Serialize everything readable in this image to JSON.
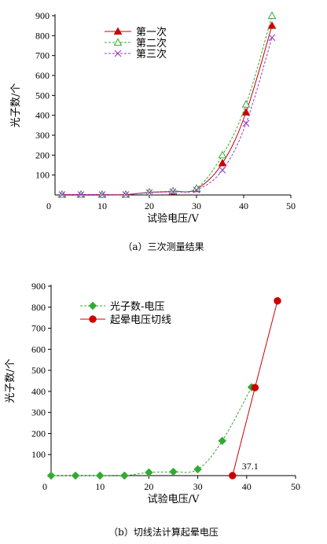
{
  "chart_data": [
    {
      "type": "line",
      "caption": "（a）三次测量结果",
      "xlabel": "试验电压/V",
      "ylabel": "光子数/个",
      "xlim": [
        0,
        50
      ],
      "ylim": [
        0,
        900
      ],
      "xticks": [
        10,
        20,
        30,
        40,
        50
      ],
      "yticks": [
        100,
        200,
        300,
        400,
        500,
        600,
        700,
        800,
        900
      ],
      "origin_label": "0",
      "grid": false,
      "legend": "top-left",
      "x": [
        1.5,
        5.5,
        10,
        15,
        20,
        25,
        30,
        35.5,
        40.5,
        46
      ],
      "series": [
        {
          "name": "第一次",
          "color": "#cc0000",
          "marker": "filled-triangle",
          "line": "solid",
          "values": [
            2,
            2,
            2,
            2,
            13,
            18,
            30,
            160,
            415,
            850
          ]
        },
        {
          "name": "第二次",
          "color": "#33aa33",
          "marker": "open-triangle",
          "line": "dashed",
          "values": [
            2,
            2,
            2,
            2,
            14,
            20,
            33,
            200,
            455,
            900
          ]
        },
        {
          "name": "第三次",
          "color": "#9933cc",
          "marker": "cross",
          "line": "dashed",
          "values": [
            2,
            2,
            2,
            2,
            12,
            16,
            25,
            125,
            360,
            790
          ]
        }
      ]
    },
    {
      "type": "line",
      "caption": "（b）切线法计算起晕电压",
      "xlabel": "试验电压/V",
      "ylabel": "光子数/个",
      "xlim": [
        0,
        50
      ],
      "ylim": [
        0,
        900
      ],
      "xticks": [
        10,
        20,
        30,
        40,
        50
      ],
      "yticks": [
        100,
        200,
        300,
        400,
        500,
        600,
        700,
        800,
        900
      ],
      "origin_label": "0",
      "grid": false,
      "legend": "top-left",
      "annotation": {
        "text": "37.1",
        "x": 37.1,
        "y": 0
      },
      "series": [
        {
          "name": "光子数-电压",
          "color": "#33aa33",
          "marker": "diamond",
          "line": "dashed",
          "x": [
            0,
            5,
            10,
            15,
            20,
            25,
            30,
            35,
            41
          ],
          "values": [
            0,
            0,
            0,
            0,
            15,
            18,
            30,
            165,
            420
          ]
        },
        {
          "name": "起晕电压切线",
          "color": "#cc0000",
          "marker": "circle",
          "line": "solid",
          "x": [
            37.1,
            41.7,
            46.3
          ],
          "values": [
            0,
            418,
            830
          ]
        }
      ]
    }
  ]
}
